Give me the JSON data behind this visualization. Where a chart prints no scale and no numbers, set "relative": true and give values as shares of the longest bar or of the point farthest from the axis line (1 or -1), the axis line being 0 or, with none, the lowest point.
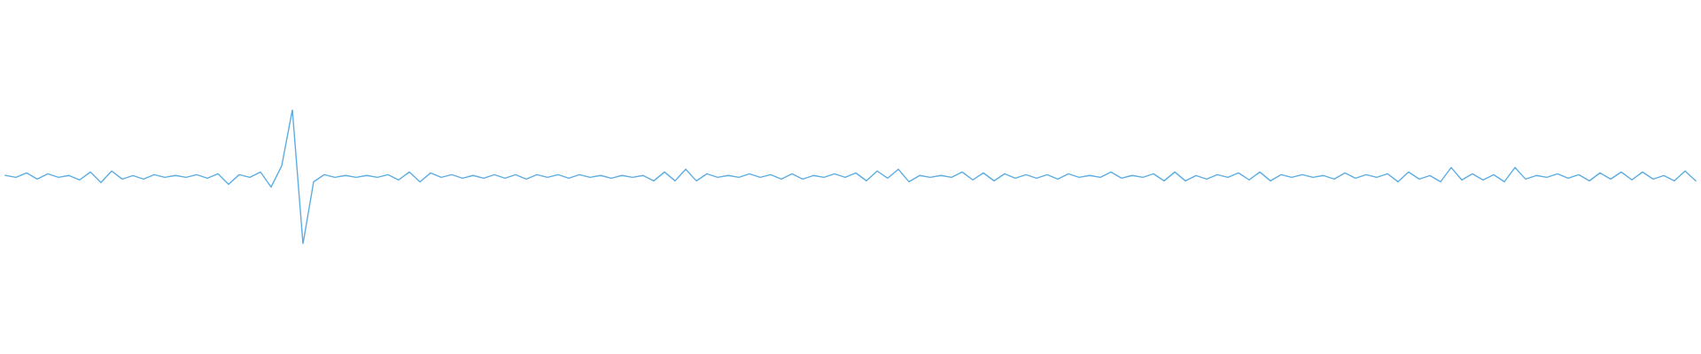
{
  "chart_data": {
    "type": "line",
    "relative": true,
    "color": "#5dade2",
    "categories": [
      null,
      null,
      null,
      null,
      null,
      null,
      null,
      null,
      null,
      null,
      null,
      null,
      null,
      null,
      null,
      null,
      null,
      null,
      null,
      null,
      null,
      null,
      null,
      null,
      null,
      null,
      null,
      null,
      null,
      null,
      null,
      null,
      null,
      null,
      null,
      null,
      null,
      null,
      null,
      null,
      null,
      null,
      null,
      null,
      null,
      null,
      null,
      null,
      null,
      null,
      null,
      null,
      null,
      null,
      null,
      null,
      null,
      null,
      null,
      null,
      null,
      null,
      null,
      null,
      null,
      null,
      null,
      null,
      null,
      null,
      null,
      null,
      null,
      null,
      null,
      null,
      null,
      null,
      null,
      null,
      null,
      null,
      null,
      null,
      null,
      null,
      null,
      null,
      null,
      null,
      null,
      null,
      null,
      null,
      null,
      null,
      null,
      null,
      null,
      null,
      null,
      null,
      null,
      null,
      null,
      null,
      null,
      null,
      null,
      null,
      null,
      null,
      null,
      null,
      null,
      null,
      null,
      null,
      null,
      null,
      null,
      null,
      null,
      null,
      null,
      null,
      null,
      null,
      null,
      null,
      null,
      null,
      null,
      null,
      null,
      null,
      null,
      null,
      null,
      null,
      null,
      null,
      null,
      null,
      null,
      null,
      null,
      null,
      null,
      null,
      null,
      null,
      null,
      null,
      null,
      null,
      null,
      null,
      null,
      null
    ],
    "values": [
      0.51,
      0.496,
      0.529,
      0.483,
      0.523,
      0.496,
      0.51,
      0.477,
      0.536,
      0.457,
      0.543,
      0.483,
      0.51,
      0.483,
      0.516,
      0.496,
      0.51,
      0.496,
      0.516,
      0.49,
      0.523,
      0.444,
      0.516,
      0.496,
      0.536,
      0.424,
      0.582,
      1.0,
      0.0,
      0.463,
      0.516,
      0.496,
      0.51,
      0.496,
      0.51,
      0.496,
      0.516,
      0.477,
      0.536,
      0.463,
      0.529,
      0.496,
      0.516,
      0.49,
      0.51,
      0.49,
      0.516,
      0.49,
      0.516,
      0.483,
      0.516,
      0.496,
      0.516,
      0.49,
      0.516,
      0.496,
      0.51,
      0.49,
      0.51,
      0.496,
      0.51,
      0.47,
      0.536,
      0.47,
      0.556,
      0.47,
      0.523,
      0.496,
      0.51,
      0.496,
      0.523,
      0.496,
      0.516,
      0.483,
      0.523,
      0.483,
      0.51,
      0.496,
      0.523,
      0.496,
      0.529,
      0.47,
      0.543,
      0.49,
      0.556,
      0.463,
      0.51,
      0.496,
      0.51,
      0.496,
      0.536,
      0.477,
      0.529,
      0.47,
      0.523,
      0.49,
      0.516,
      0.49,
      0.516,
      0.483,
      0.523,
      0.496,
      0.51,
      0.496,
      0.536,
      0.49,
      0.51,
      0.496,
      0.523,
      0.47,
      0.536,
      0.47,
      0.51,
      0.483,
      0.516,
      0.496,
      0.529,
      0.477,
      0.536,
      0.47,
      0.516,
      0.496,
      0.516,
      0.496,
      0.51,
      0.483,
      0.529,
      0.49,
      0.516,
      0.496,
      0.523,
      0.463,
      0.536,
      0.483,
      0.51,
      0.463,
      0.569,
      0.477,
      0.523,
      0.477,
      0.516,
      0.463,
      0.569,
      0.483,
      0.51,
      0.496,
      0.523,
      0.49,
      0.516,
      0.47,
      0.529,
      0.483,
      0.536,
      0.477,
      0.536,
      0.483,
      0.51,
      0.47,
      0.543,
      0.47
    ]
  }
}
